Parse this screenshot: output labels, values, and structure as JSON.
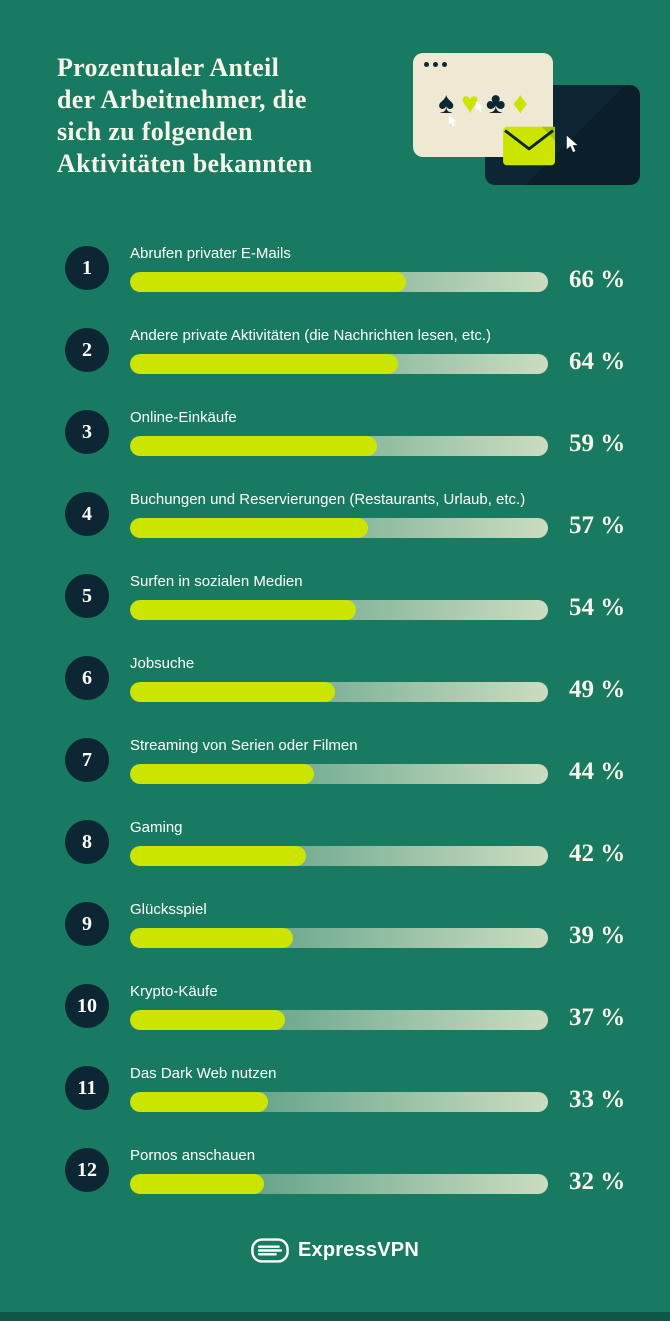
{
  "colors": {
    "background": "#187a60",
    "bar_fill": "#cbe501",
    "badge": "#0d2633",
    "text": "#f7f5ea",
    "window_cream": "#efe9d4",
    "bottom_strip": "#0e5748"
  },
  "header": {
    "title": "Prozentualer Anteil der Arbeitnehmer, die sich zu folgenden Aktivitäten bekannten",
    "title_lines": [
      "Prozentualer Anteil",
      "der Arbeitnehmer, die",
      "sich zu folgenden",
      "Aktivitäten bekannten"
    ]
  },
  "illustration": {
    "suits": [
      "♠",
      "♥",
      "♣",
      "♦"
    ]
  },
  "chart_data": {
    "type": "bar",
    "orientation": "horizontal",
    "title": "Prozentualer Anteil der Arbeitnehmer, die sich zu folgenden Aktivitäten bekannten",
    "unit": "%",
    "xlim": [
      0,
      100
    ],
    "grid": false,
    "legend": false,
    "categories": [
      "Abrufen privater E-Mails",
      "Andere private Aktivitäten (die Nachrichten lesen, etc.)",
      "Online-Einkäufe",
      "Buchungen und Reservierungen (Restaurants, Urlaub, etc.)",
      "Surfen in sozialen Medien",
      "Jobsuche",
      "Streaming von Serien oder Filmen",
      "Gaming",
      "Glücksspiel",
      "Krypto-Käufe",
      "Das Dark Web nutzen",
      "Pornos anschauen"
    ],
    "ranks": [
      "1",
      "2",
      "3",
      "4",
      "5",
      "6",
      "7",
      "8",
      "9",
      "10",
      "11",
      "12"
    ],
    "values": [
      66,
      64,
      59,
      57,
      54,
      49,
      44,
      42,
      39,
      37,
      33,
      32
    ],
    "value_labels": [
      "66 %",
      "64 %",
      "59 %",
      "57 %",
      "54 %",
      "49 %",
      "44 %",
      "42 %",
      "39 %",
      "37 %",
      "33 %",
      "32 %"
    ]
  },
  "footer": {
    "brand": "ExpressVPN"
  }
}
